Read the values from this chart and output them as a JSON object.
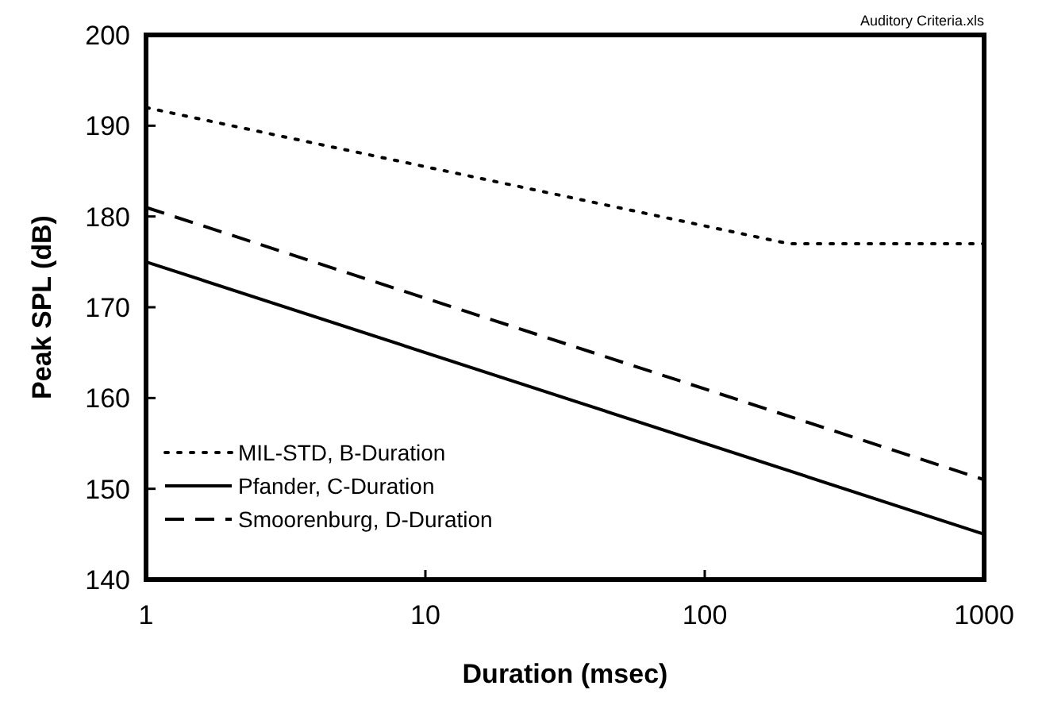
{
  "chart_data": {
    "type": "line",
    "xlabel": "Duration (msec)",
    "ylabel": "Peak SPL (dB)",
    "annotations": [
      "Auditory Criteria.xls"
    ],
    "log": "x",
    "xlim": [
      1,
      1000
    ],
    "xticks": [
      1,
      10,
      100,
      1000
    ],
    "ylim": [
      140,
      200
    ],
    "yticks": [
      140,
      150,
      160,
      170,
      180,
      190,
      200
    ],
    "legend": "bottom left",
    "marker": "none",
    "series": [
      {
        "name": "MIL-STD, B-Duration",
        "color": "#000000",
        "line_style": "dotted",
        "x": [
          1,
          200,
          1000
        ],
        "values": [
          192,
          177,
          177
        ]
      },
      {
        "name": "Pfander, C-Duration",
        "color": "#000000",
        "line_style": "solid",
        "x": [
          1,
          1000
        ],
        "values": [
          175,
          145
        ]
      },
      {
        "name": "Smoorenburg, D-Duration",
        "color": "#000000",
        "line_style": "dashed",
        "x": [
          1,
          1000
        ],
        "values": [
          181,
          151
        ]
      }
    ]
  }
}
